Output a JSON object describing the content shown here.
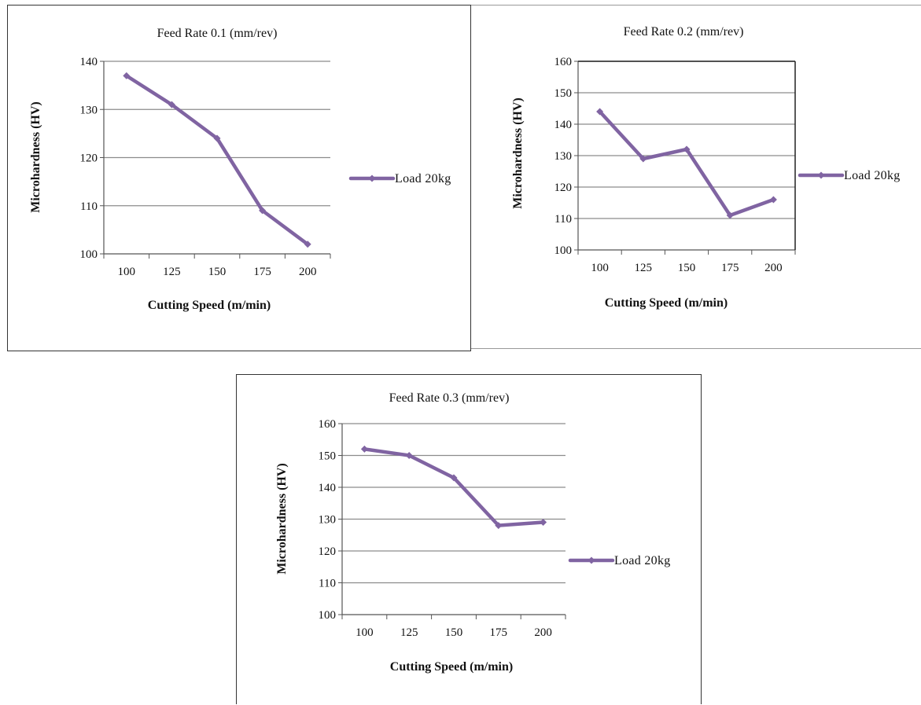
{
  "chart_data": [
    {
      "type": "line",
      "title": "Feed Rate 0.1 (mm/rev)",
      "xlabel": "Cutting Speed (m/min)",
      "ylabel": "Microhardness (HV)",
      "categories": [
        "100",
        "125",
        "150",
        "175",
        "200"
      ],
      "ylim": [
        100,
        140
      ],
      "yticks": [
        "100",
        "110",
        "120",
        "130",
        "140"
      ],
      "grid": true,
      "legend_position": "right",
      "series": [
        {
          "name": "Load 20kg",
          "color": "#8064a2",
          "values": [
            137,
            131,
            124,
            109,
            102
          ]
        }
      ]
    },
    {
      "type": "line",
      "title": "Feed Rate 0.2 (mm/rev)",
      "xlabel": "Cutting Speed (m/min)",
      "ylabel": "Microhardness (HV)",
      "categories": [
        "100",
        "125",
        "150",
        "175",
        "200"
      ],
      "ylim": [
        100,
        160
      ],
      "yticks": [
        "100",
        "110",
        "120",
        "130",
        "140",
        "150",
        "160"
      ],
      "grid": true,
      "legend_position": "right",
      "series": [
        {
          "name": "Load 20kg",
          "color": "#8064a2",
          "values": [
            144,
            129,
            132,
            111,
            116
          ]
        }
      ]
    },
    {
      "type": "line",
      "title": "Feed Rate 0.3 (mm/rev)",
      "xlabel": "Cutting Speed (m/min)",
      "ylabel": "Microhardness (HV)",
      "categories": [
        "100",
        "125",
        "150",
        "175",
        "200"
      ],
      "ylim": [
        100,
        160
      ],
      "yticks": [
        "100",
        "110",
        "120",
        "130",
        "140",
        "150",
        "160"
      ],
      "grid": true,
      "legend_position": "right",
      "series": [
        {
          "name": "Load 20kg",
          "color": "#8064a2",
          "values": [
            152,
            150,
            143,
            128,
            129
          ]
        }
      ]
    }
  ]
}
